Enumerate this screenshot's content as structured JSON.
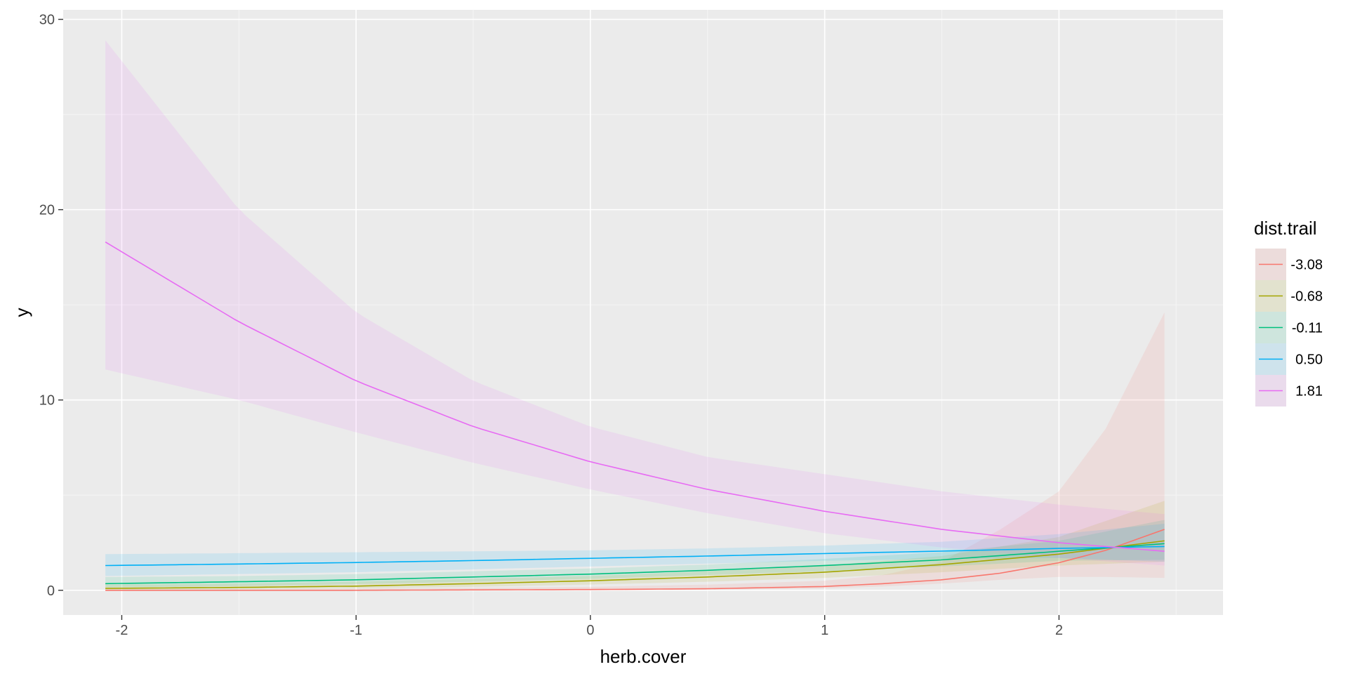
{
  "chart_data": {
    "type": "line",
    "xlabel": "herb.cover",
    "ylabel": "y",
    "xlim": [
      -2.25,
      2.7
    ],
    "ylim": [
      -1.3,
      30.5
    ],
    "x_ticks": [
      -2,
      -1,
      0,
      1,
      2
    ],
    "y_ticks": [
      0,
      10,
      20,
      30
    ],
    "grid": true,
    "legend_title": "dist.trail",
    "legend_position": "right",
    "x_range": [
      -2.07,
      2.45
    ],
    "series": [
      {
        "name": "-3.08",
        "color": "#F8766D",
        "x": [
          -2.07,
          -1.5,
          -1.0,
          -0.5,
          0.0,
          0.5,
          1.0,
          1.25,
          1.5,
          1.75,
          2.0,
          2.2,
          2.45
        ],
        "y": [
          0.0,
          0.0,
          0.0,
          0.02,
          0.04,
          0.08,
          0.2,
          0.35,
          0.55,
          0.9,
          1.45,
          2.1,
          3.2
        ],
        "lower": [
          0.0,
          0.0,
          0.0,
          0.0,
          0.0,
          0.03,
          0.1,
          0.2,
          0.35,
          0.55,
          0.7,
          0.7,
          0.65
        ],
        "upper": [
          0.05,
          0.06,
          0.08,
          0.12,
          0.18,
          0.3,
          0.5,
          0.8,
          1.5,
          3.2,
          5.2,
          8.5,
          14.6
        ]
      },
      {
        "name": "-0.68",
        "color": "#A3A500",
        "x": [
          -2.07,
          -1.5,
          -1.0,
          -0.5,
          0.0,
          0.5,
          1.0,
          1.5,
          2.0,
          2.45
        ],
        "y": [
          0.1,
          0.15,
          0.22,
          0.35,
          0.5,
          0.7,
          0.95,
          1.35,
          1.9,
          2.6
        ],
        "lower": [
          0.03,
          0.05,
          0.1,
          0.18,
          0.3,
          0.45,
          0.65,
          0.95,
          1.3,
          1.5
        ],
        "upper": [
          0.3,
          0.35,
          0.45,
          0.6,
          0.75,
          1.0,
          1.3,
          1.8,
          2.8,
          4.7
        ]
      },
      {
        "name": "-0.11",
        "color": "#00BF7D",
        "x": [
          -2.07,
          -1.5,
          -1.0,
          -0.5,
          0.0,
          0.5,
          1.0,
          1.5,
          2.0,
          2.45
        ],
        "y": [
          0.35,
          0.45,
          0.55,
          0.7,
          0.85,
          1.05,
          1.3,
          1.6,
          2.05,
          2.45
        ],
        "lower": [
          0.15,
          0.22,
          0.32,
          0.45,
          0.6,
          0.8,
          1.0,
          1.25,
          1.55,
          1.6
        ],
        "upper": [
          0.7,
          0.75,
          0.85,
          1.0,
          1.15,
          1.35,
          1.65,
          2.0,
          2.6,
          3.7
        ]
      },
      {
        "name": "0.50",
        "color": "#00B0F6",
        "x": [
          -2.07,
          -1.5,
          -1.0,
          -0.5,
          0.0,
          0.5,
          1.0,
          1.5,
          2.0,
          2.45
        ],
        "y": [
          1.3,
          1.38,
          1.46,
          1.56,
          1.68,
          1.8,
          1.93,
          2.06,
          2.2,
          2.3
        ],
        "lower": [
          0.75,
          0.85,
          0.95,
          1.1,
          1.25,
          1.4,
          1.55,
          1.65,
          1.7,
          1.5
        ],
        "upper": [
          1.9,
          1.95,
          2.0,
          2.05,
          2.1,
          2.2,
          2.35,
          2.55,
          2.95,
          3.5
        ]
      },
      {
        "name": "1.81",
        "color": "#E76BF3",
        "x": [
          -2.07,
          -1.5,
          -1.0,
          -0.5,
          0.0,
          0.5,
          1.0,
          1.5,
          2.0,
          2.45
        ],
        "y": [
          18.3,
          14.1,
          11.0,
          8.6,
          6.75,
          5.3,
          4.15,
          3.2,
          2.5,
          2.05
        ],
        "lower": [
          11.6,
          10.0,
          8.3,
          6.7,
          5.3,
          4.05,
          3.0,
          2.25,
          1.7,
          1.3
        ],
        "upper": [
          28.9,
          20.0,
          14.6,
          11.0,
          8.6,
          7.0,
          6.1,
          5.2,
          4.5,
          4.0
        ]
      }
    ]
  }
}
